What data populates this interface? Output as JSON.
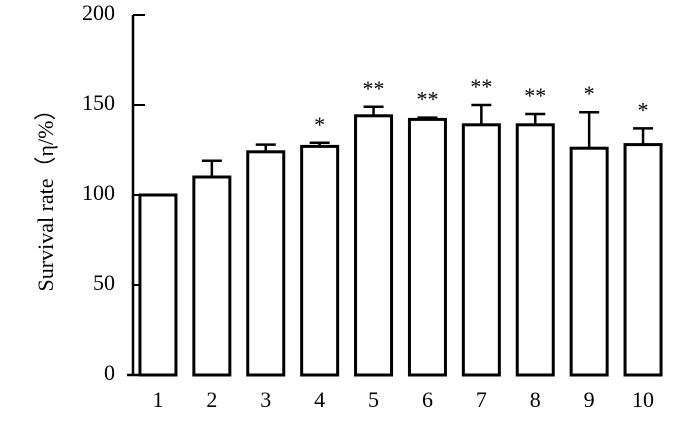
{
  "chart_data": {
    "type": "bar",
    "ylabel": "Survival rate（η/%）",
    "categories": [
      "1",
      "2",
      "3",
      "4",
      "5",
      "6",
      "7",
      "8",
      "9",
      "10"
    ],
    "values": [
      100,
      110,
      124,
      127,
      144,
      142,
      139,
      139,
      126,
      128
    ],
    "errors": [
      0,
      9,
      4,
      2,
      5,
      1,
      11,
      6,
      20,
      9
    ],
    "significance": [
      null,
      null,
      null,
      "*",
      "**",
      "**",
      "**",
      "**",
      "*",
      "*"
    ],
    "color": "#ffffff",
    "ylim": [
      0,
      200
    ],
    "yticks": [
      0,
      50,
      100,
      150,
      200
    ],
    "grid": false
  }
}
